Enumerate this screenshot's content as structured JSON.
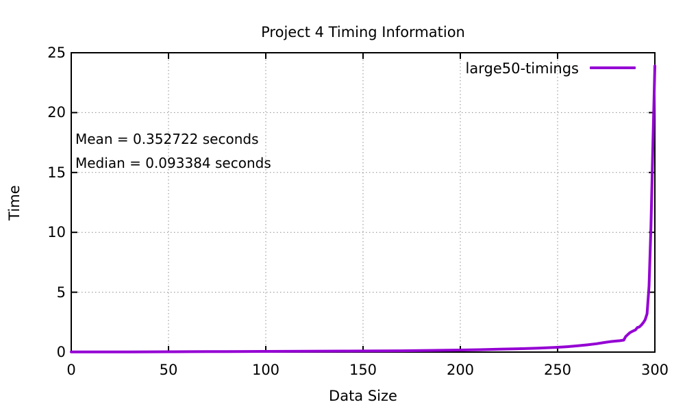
{
  "title": "Project 4 Timing Information",
  "axes": {
    "x_label": "Data Size",
    "y_label": "Time"
  },
  "annotations": {
    "mean": "Mean = 0.352722 seconds",
    "median": "Median = 0.093384 seconds"
  },
  "legend": {
    "label": "large50-timings"
  },
  "chart_data": {
    "type": "line",
    "title": "Project 4 Timing Information",
    "xlabel": "Data Size",
    "ylabel": "Time",
    "xlim": [
      0,
      300
    ],
    "ylim": [
      0,
      25
    ],
    "xticks": [
      0,
      50,
      100,
      150,
      200,
      250,
      300
    ],
    "yticks": [
      0,
      5,
      10,
      15,
      20,
      25
    ],
    "grid": "dotted",
    "grid_color": "#8a8a8a",
    "legend_position": "top-right-inside",
    "stats": {
      "mean_seconds": 0.352722,
      "median_seconds": 0.093384
    },
    "series": [
      {
        "name": "large50-timings",
        "color": "#9400D3",
        "points": [
          [
            0,
            0.01
          ],
          [
            10,
            0.012
          ],
          [
            20,
            0.015
          ],
          [
            30,
            0.018
          ],
          [
            40,
            0.022
          ],
          [
            50,
            0.027
          ],
          [
            60,
            0.032
          ],
          [
            70,
            0.038
          ],
          [
            80,
            0.044
          ],
          [
            90,
            0.05
          ],
          [
            100,
            0.057
          ],
          [
            110,
            0.065
          ],
          [
            120,
            0.072
          ],
          [
            130,
            0.08
          ],
          [
            140,
            0.087
          ],
          [
            150,
            0.093
          ],
          [
            160,
            0.1
          ],
          [
            170,
            0.11
          ],
          [
            180,
            0.13
          ],
          [
            190,
            0.15
          ],
          [
            200,
            0.17
          ],
          [
            210,
            0.2
          ],
          [
            220,
            0.24
          ],
          [
            230,
            0.28
          ],
          [
            240,
            0.33
          ],
          [
            250,
            0.4
          ],
          [
            255,
            0.45
          ],
          [
            260,
            0.52
          ],
          [
            265,
            0.6
          ],
          [
            270,
            0.7
          ],
          [
            274,
            0.8
          ],
          [
            277,
            0.87
          ],
          [
            280,
            0.92
          ],
          [
            282,
            0.95
          ],
          [
            284,
            1.0
          ],
          [
            285,
            1.3
          ],
          [
            286,
            1.45
          ],
          [
            287,
            1.6
          ],
          [
            288,
            1.7
          ],
          [
            289,
            1.78
          ],
          [
            290,
            1.85
          ],
          [
            291,
            2.05
          ],
          [
            292,
            2.1
          ],
          [
            293,
            2.25
          ],
          [
            294,
            2.45
          ],
          [
            295,
            2.7
          ],
          [
            296,
            3.2
          ],
          [
            297,
            5.5
          ],
          [
            298,
            10.5
          ],
          [
            299,
            17.5
          ],
          [
            300,
            23.9
          ]
        ]
      }
    ]
  }
}
